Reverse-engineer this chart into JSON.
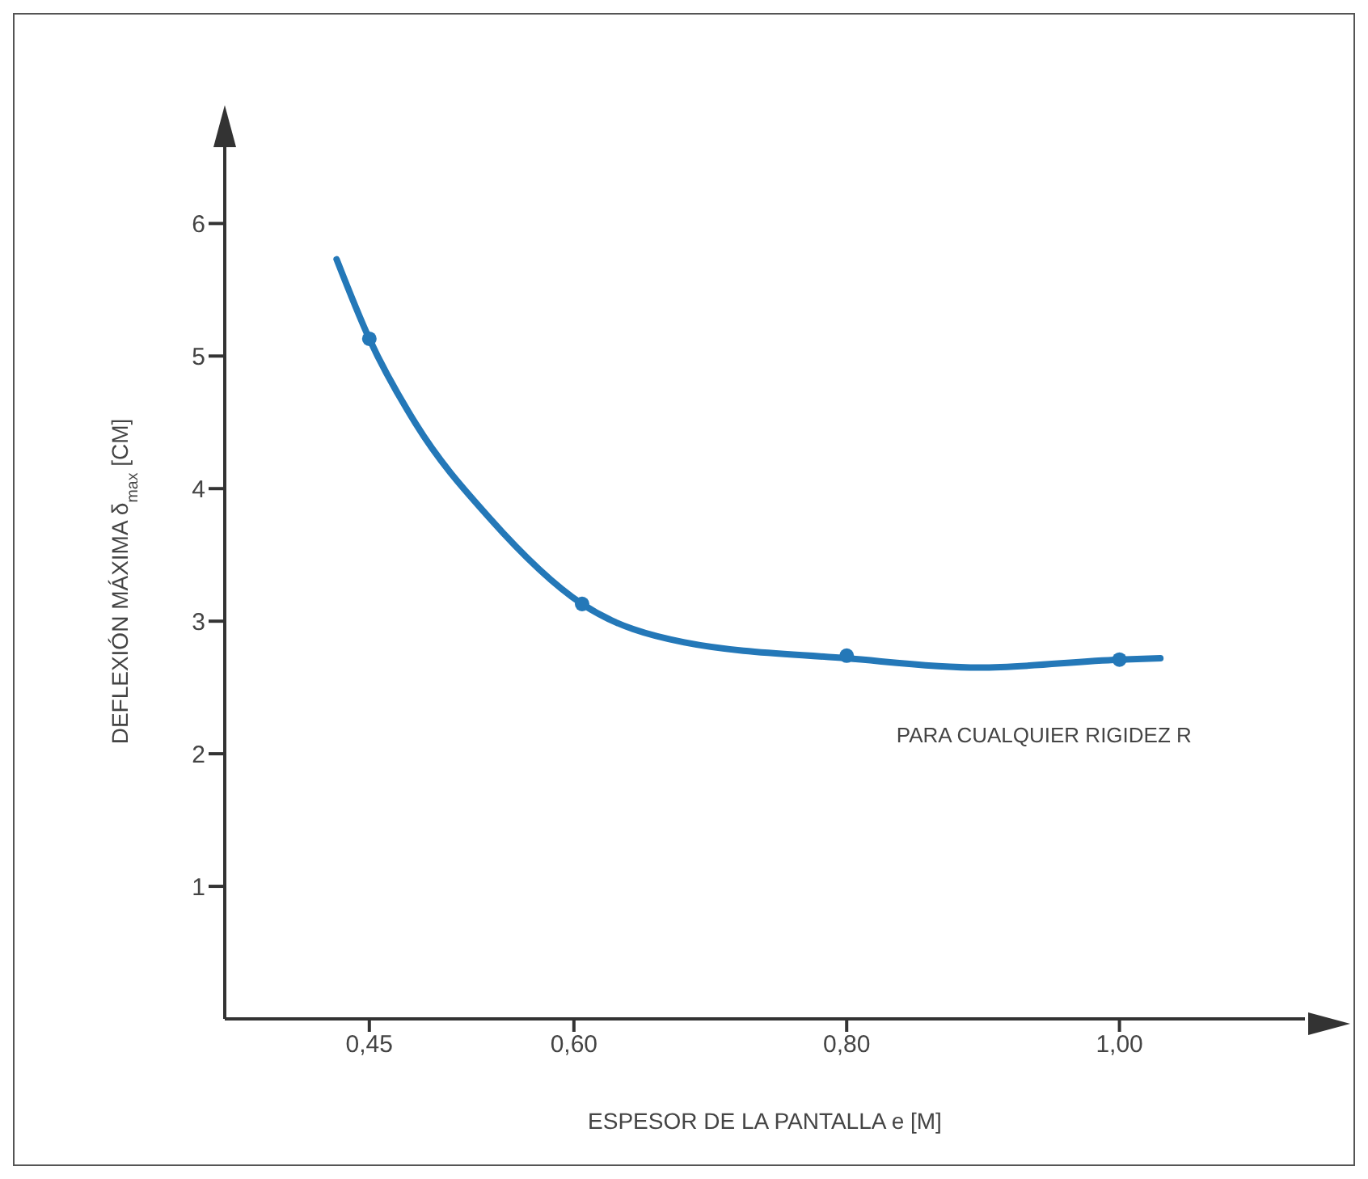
{
  "chart_data": {
    "type": "line",
    "xlabel": "ESPESOR DE LA PANTALLA e [M]",
    "ylabel": "DEFLEXIÓN MÁXIMA δ$_{max}$ [CM]",
    "xlim": [
      0.344,
      1.136
    ],
    "xticks": [
      {
        "value": 0.45,
        "label": "0,45"
      },
      {
        "value": 0.6,
        "label": "0,60"
      },
      {
        "value": 0.8,
        "label": "0,80"
      },
      {
        "value": 1.0,
        "label": "1,00"
      }
    ],
    "ylim": [
      0,
      6.6
    ],
    "yticks": [
      1,
      2,
      3,
      4,
      5,
      6
    ],
    "grid": false,
    "annotations": [
      "PARA CUALQUIER RIGIDEZ R"
    ],
    "series": [
      {
        "color": "#2478b8",
        "x": [
          0.426,
          0.45,
          0.484,
          0.538,
          0.606,
          0.681,
          0.8,
          0.897,
          1.0,
          1.03
        ],
        "values": [
          5.73,
          5.13,
          4.49,
          3.78,
          3.13,
          2.84,
          2.72,
          2.65,
          2.71,
          2.72
        ],
        "marker": "none"
      },
      {
        "type": "scatter",
        "color": "#2478b8",
        "x": [
          0.45,
          0.606,
          0.8,
          1.0
        ],
        "values": [
          5.13,
          3.13,
          2.74,
          2.71
        ],
        "marker": "circle"
      }
    ]
  }
}
